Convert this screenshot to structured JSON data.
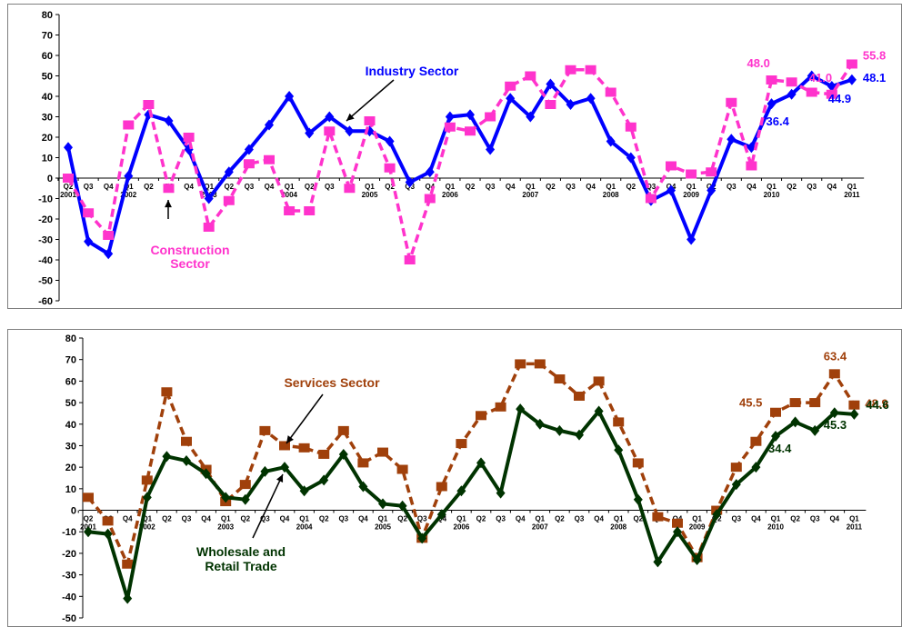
{
  "colors": {
    "industry": "#0000ff",
    "construction": "#ff33cc",
    "services": "#a0400b",
    "wholesale": "#003300",
    "axis": "#000000",
    "frame": "#7f7f7f"
  },
  "chart_data": [
    {
      "type": "line",
      "title": "",
      "xlabel": "",
      "ylabel": "",
      "ylim": [
        -60,
        80
      ],
      "yticks": [
        -60,
        -50,
        -40,
        -30,
        -20,
        -10,
        0,
        10,
        20,
        30,
        40,
        50,
        60,
        70,
        80
      ],
      "categories": [
        "Q2",
        "Q3",
        "Q4",
        "Q1",
        "Q2",
        "Q3",
        "Q4",
        "Q1",
        "Q2",
        "Q3",
        "Q4",
        "Q1",
        "Q2",
        "Q3",
        "Q4",
        "Q1",
        "Q2",
        "Q3",
        "Q4",
        "Q1",
        "Q2",
        "Q3",
        "Q4",
        "Q1",
        "Q2",
        "Q3",
        "Q4",
        "Q1",
        "Q2",
        "Q3",
        "Q4",
        "Q1",
        "Q2",
        "Q3",
        "Q4",
        "Q1",
        "Q2",
        "Q3",
        "Q4",
        "Q1"
      ],
      "years": [
        {
          "label": "2001",
          "index": 0
        },
        {
          "label": "2002",
          "index": 3
        },
        {
          "label": "2003",
          "index": 7
        },
        {
          "label": "2004",
          "index": 11
        },
        {
          "label": "2005",
          "index": 15
        },
        {
          "label": "2006",
          "index": 19
        },
        {
          "label": "2007",
          "index": 23
        },
        {
          "label": "2008",
          "index": 27
        },
        {
          "label": "2009",
          "index": 31
        },
        {
          "label": "2010",
          "index": 35
        },
        {
          "label": "2011",
          "index": 39
        }
      ],
      "series": [
        {
          "name": "Industry Sector",
          "color": "#0000ff",
          "style": "solid",
          "marker": "diamond",
          "values": [
            15,
            -31,
            -37,
            1,
            31,
            28,
            14,
            -10,
            3,
            14,
            26,
            40,
            22,
            30,
            23,
            23,
            18,
            -2,
            3,
            30,
            31,
            14,
            39,
            30,
            46,
            36,
            39,
            18,
            10,
            -11,
            -6,
            -30,
            -6,
            19,
            15,
            36.4,
            41,
            50,
            44.9,
            48.1
          ]
        },
        {
          "name": "Construction Sector",
          "color": "#ff33cc",
          "style": "dashed",
          "marker": "square",
          "values": [
            0,
            -17,
            -28,
            26,
            36,
            -5,
            20,
            -24,
            -11,
            7,
            9,
            -16,
            -16,
            23,
            -5,
            28,
            5,
            -40,
            -10,
            25,
            23,
            30,
            45,
            50,
            36,
            53,
            53,
            42,
            25,
            -10,
            6,
            2,
            3,
            37,
            6,
            48,
            47,
            42,
            41,
            55.8
          ]
        }
      ],
      "annotations": [
        {
          "text": "Industry Sector",
          "series": "Industry Sector"
        },
        {
          "text": "Construction",
          "series": "Construction Sector"
        },
        {
          "text": "Sector",
          "series": "Construction Sector"
        }
      ],
      "value_labels": [
        {
          "text": "48.0",
          "series": "Construction Sector",
          "index": 35
        },
        {
          "text": "41.0",
          "series": "Construction Sector",
          "index": 38
        },
        {
          "text": "55.8",
          "series": "Construction Sector",
          "index": 39
        },
        {
          "text": "36.4",
          "series": "Industry Sector",
          "index": 35
        },
        {
          "text": "44.9",
          "series": "Industry Sector",
          "index": 38
        },
        {
          "text": "48.1",
          "series": "Industry Sector",
          "index": 39
        }
      ]
    },
    {
      "type": "line",
      "title": "",
      "xlabel": "",
      "ylabel": "",
      "ylim": [
        -50,
        80
      ],
      "yticks": [
        -50,
        -40,
        -30,
        -20,
        -10,
        0,
        10,
        20,
        30,
        40,
        50,
        60,
        70,
        80
      ],
      "categories": [
        "Q2",
        "Q3",
        "Q4",
        "Q1",
        "Q2",
        "Q3",
        "Q4",
        "Q1",
        "Q2",
        "Q3",
        "Q4",
        "Q1",
        "Q2",
        "Q3",
        "Q4",
        "Q1",
        "Q2",
        "Q3",
        "Q4",
        "Q1",
        "Q2",
        "Q3",
        "Q4",
        "Q1",
        "Q2",
        "Q3",
        "Q4",
        "Q1",
        "Q2",
        "Q3",
        "Q4",
        "Q1",
        "Q2",
        "Q3",
        "Q4",
        "Q1",
        "Q2",
        "Q3",
        "Q4",
        "Q1"
      ],
      "years": [
        {
          "label": "2001",
          "index": 0
        },
        {
          "label": "2002",
          "index": 3
        },
        {
          "label": "2003",
          "index": 7
        },
        {
          "label": "2004",
          "index": 11
        },
        {
          "label": "2005",
          "index": 15
        },
        {
          "label": "2006",
          "index": 19
        },
        {
          "label": "2007",
          "index": 23
        },
        {
          "label": "2008",
          "index": 27
        },
        {
          "label": "2009",
          "index": 31
        },
        {
          "label": "2010",
          "index": 35
        },
        {
          "label": "2011",
          "index": 39
        }
      ],
      "series": [
        {
          "name": "Services Sector",
          "color": "#a0400b",
          "style": "dashed",
          "marker": "square",
          "values": [
            6,
            -5,
            -25,
            14,
            55,
            32,
            19,
            4,
            12,
            37,
            30,
            29,
            26,
            37,
            22,
            27,
            19,
            -13,
            11,
            31,
            44,
            48,
            68,
            68,
            61,
            53,
            60,
            41,
            22,
            -3,
            -6,
            -22,
            0,
            20,
            32,
            45.5,
            50,
            50,
            63.4,
            48.9
          ]
        },
        {
          "name": "Wholesale and Retail Trade",
          "color": "#003300",
          "style": "solid",
          "marker": "diamond",
          "values": [
            -10,
            -11,
            -41,
            6,
            25,
            23,
            17,
            6,
            5,
            18,
            20,
            9,
            14,
            26,
            11,
            3,
            2,
            -13,
            -2,
            9,
            22,
            8,
            47,
            40,
            37,
            35,
            46,
            28,
            5,
            -24,
            -10,
            -23,
            -2,
            12,
            20,
            34.4,
            41,
            37,
            45.3,
            44.6
          ]
        }
      ],
      "annotations": [
        {
          "text": "Services Sector",
          "series": "Services Sector"
        },
        {
          "text": "Wholesale and",
          "series": "Wholesale and Retail Trade"
        },
        {
          "text": "Retail Trade",
          "series": "Wholesale and Retail Trade"
        }
      ],
      "value_labels": [
        {
          "text": "63.4",
          "series": "Services Sector",
          "index": 38
        },
        {
          "text": "45.5",
          "series": "Services Sector",
          "index": 35
        },
        {
          "text": "48.9",
          "series": "Services Sector",
          "index": 39
        },
        {
          "text": "34.4",
          "series": "Wholesale and Retail Trade",
          "index": 35
        },
        {
          "text": "45.3",
          "series": "Wholesale and Retail Trade",
          "index": 38
        },
        {
          "text": "44.6",
          "series": "Wholesale and Retail Trade",
          "index": 39
        }
      ]
    }
  ]
}
